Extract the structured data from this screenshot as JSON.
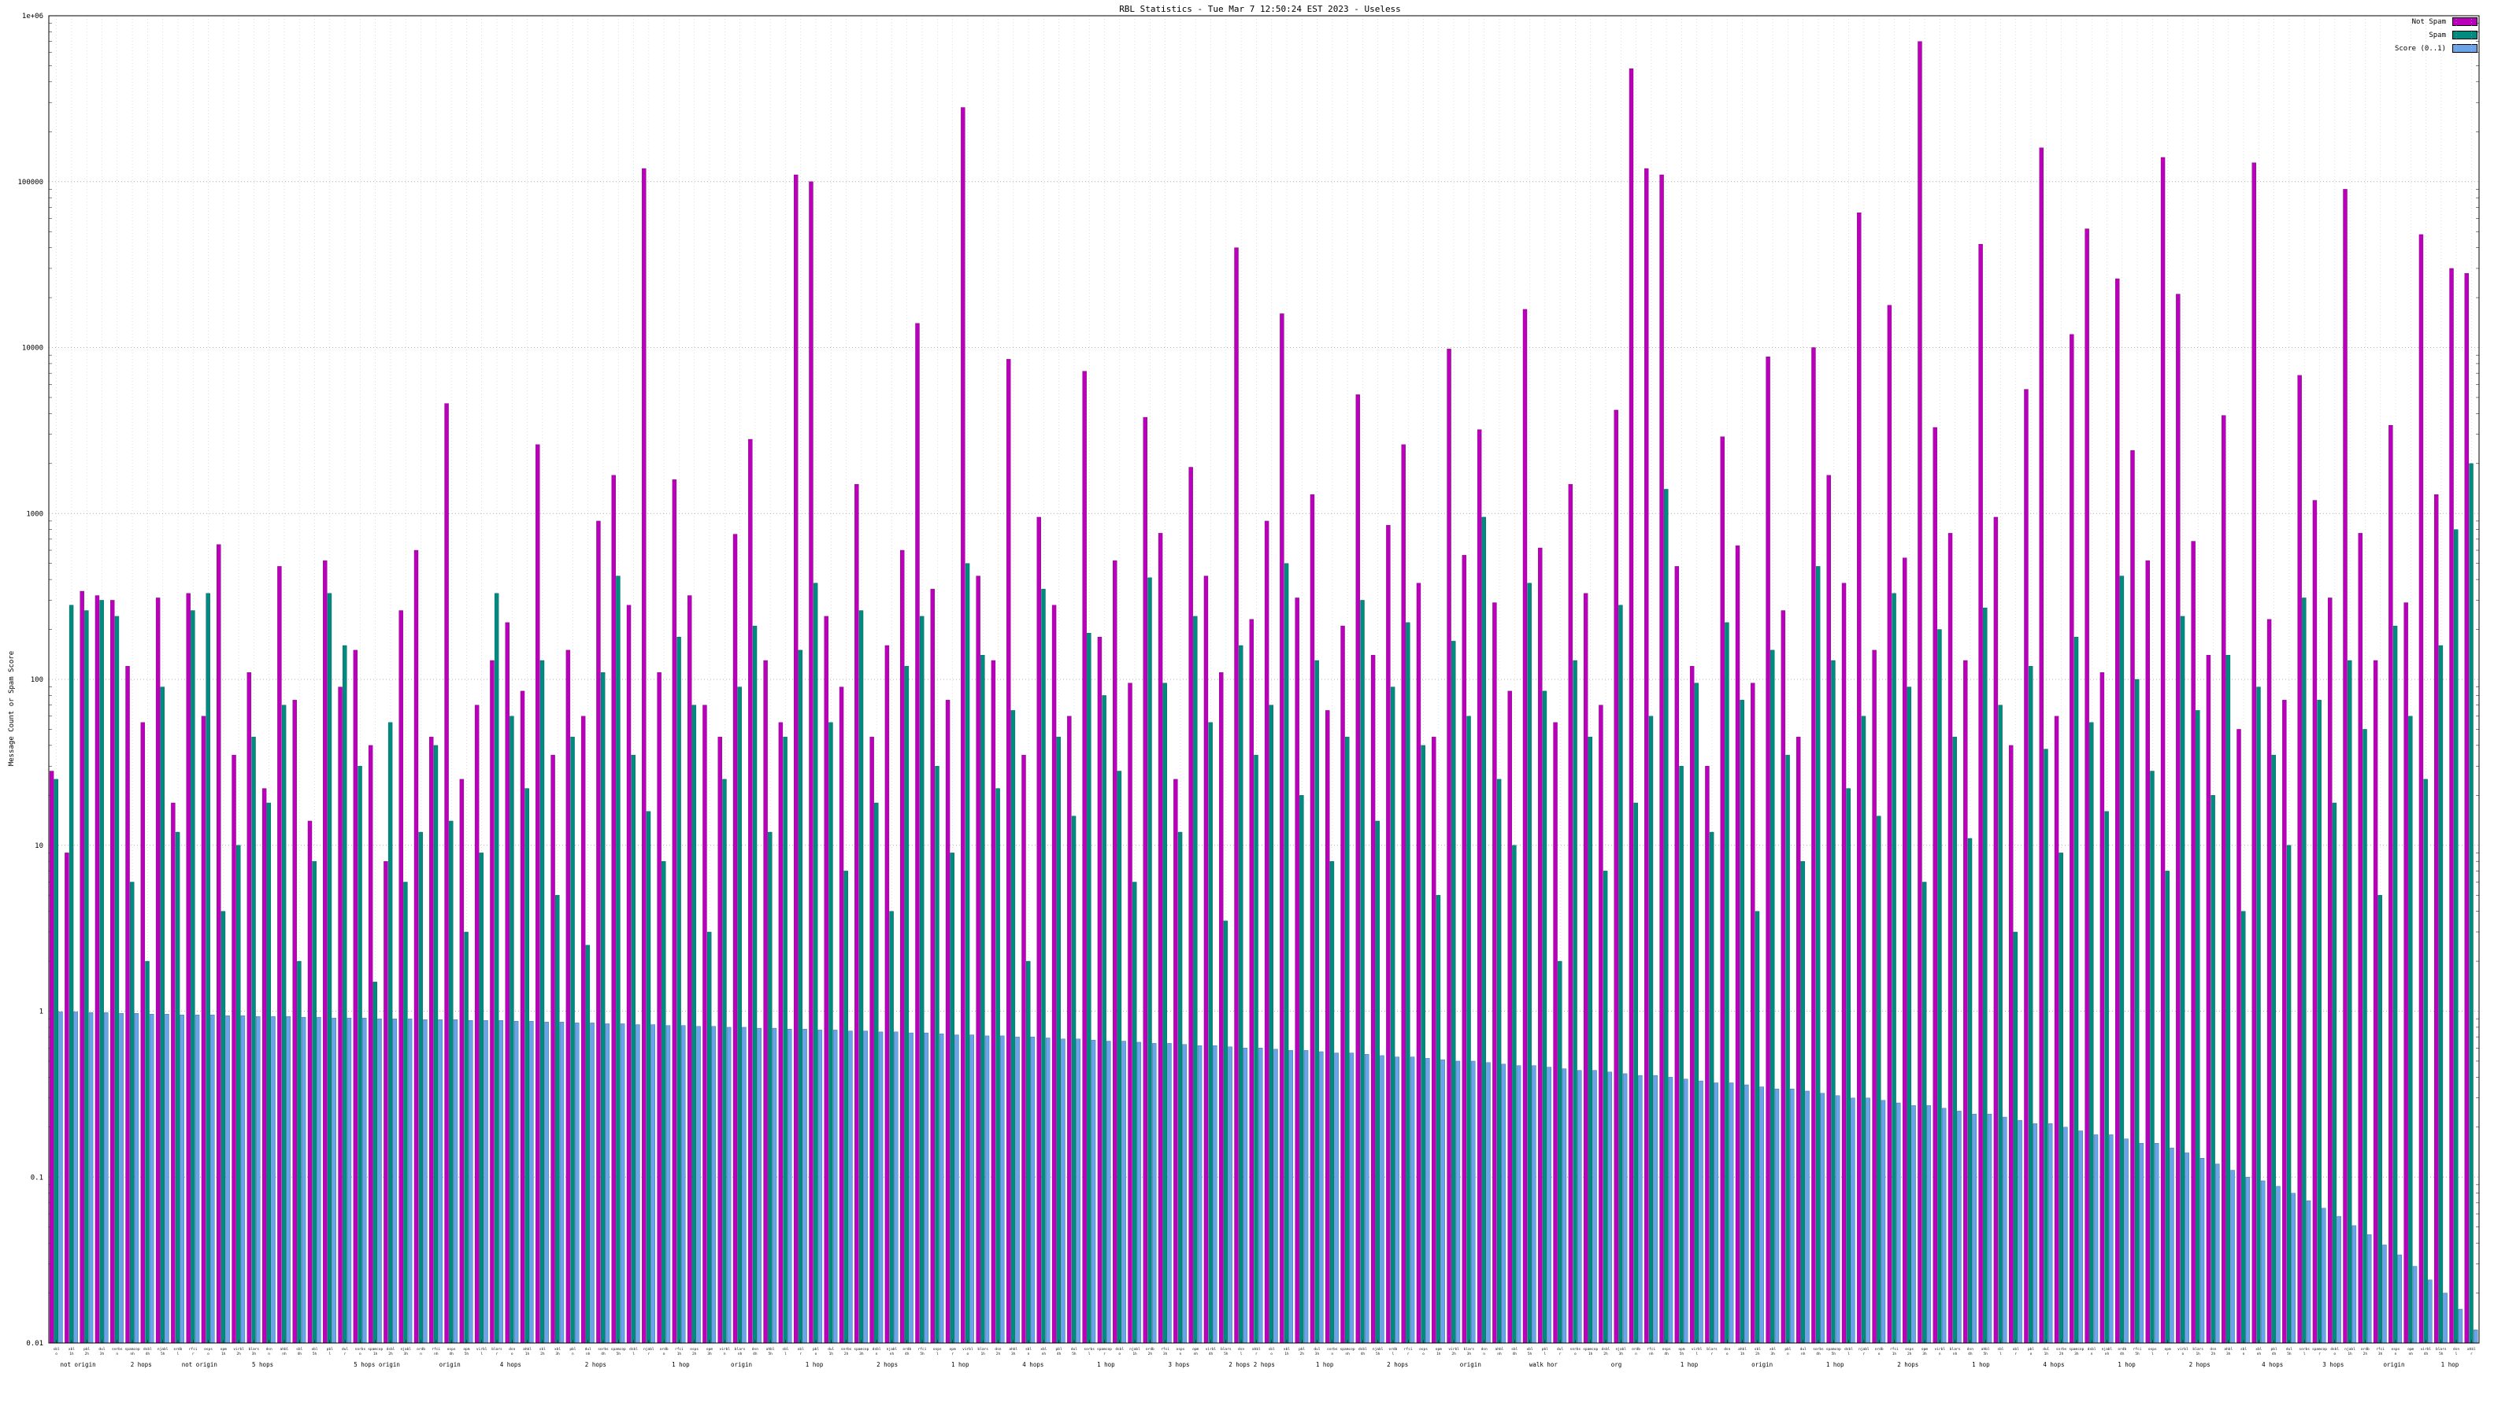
{
  "chart_data": {
    "type": "bar",
    "title": "RBL Statistics - Tue Mar  7 12:50:24 EST 2023 - Useless",
    "ylabel": "Message Count or Spam Score",
    "xlabel": "",
    "y_scale": "log",
    "ylim": [
      0.01,
      1000000
    ],
    "y_ticks": [
      "1e+06",
      "100000",
      "10000",
      "1000",
      "100",
      "10",
      "1",
      "0.1",
      "0.01"
    ],
    "y_tick_values": [
      1000000,
      100000,
      10000,
      1000,
      100,
      10,
      1,
      0.1,
      0.01
    ],
    "grid": true,
    "legend_position": "top-right",
    "series": [
      {
        "name": "Not Spam",
        "color": "#bb00bb",
        "edge": "#770077",
        "values": [
          28,
          9,
          340,
          320,
          300,
          120,
          55,
          310,
          18,
          330,
          60,
          650,
          35,
          110,
          22,
          480,
          75,
          14,
          520,
          90,
          150,
          40,
          8,
          260,
          600,
          45,
          4600,
          25,
          70,
          130,
          220,
          85,
          2600,
          35,
          150,
          60,
          900,
          1700,
          280,
          120000,
          110,
          1600,
          320,
          70,
          45,
          750,
          2800,
          130,
          55,
          110000,
          100000,
          240,
          90,
          1500,
          45,
          160,
          600,
          14000,
          350,
          75,
          280000,
          420,
          130,
          8500,
          35,
          950,
          280,
          60,
          7200,
          180,
          520,
          95,
          3800,
          760,
          25,
          1900,
          420,
          110,
          40000,
          230,
          900,
          16000,
          310,
          1300,
          65,
          210,
          5200,
          140,
          850,
          2600,
          380,
          45,
          9800,
          560,
          3200,
          290,
          85,
          17000,
          620,
          55,
          1500,
          330,
          70,
          4200,
          480000,
          120000,
          110000,
          480,
          120,
          30,
          2900,
          640,
          95,
          8800,
          260,
          45,
          10000,
          1700,
          380,
          65000,
          150,
          18000,
          540,
          700000,
          3300,
          760,
          130,
          42000,
          950,
          40,
          5600,
          160000,
          60,
          12000,
          52000,
          110,
          26000,
          2400,
          520,
          140000,
          21000,
          680,
          140,
          3900,
          50,
          130000,
          230,
          75,
          6800,
          1200,
          310,
          90000,
          760,
          130,
          3400,
          290,
          48000,
          1300,
          30000,
          28000
        ]
      },
      {
        "name": "Spam",
        "color": "#008b80",
        "edge": "#005550",
        "values": [
          25,
          280,
          260,
          300,
          240,
          6,
          2,
          90,
          12,
          260,
          330,
          4,
          10,
          45,
          18,
          70,
          2,
          8,
          330,
          160,
          30,
          1.5,
          55,
          6,
          12,
          40,
          14,
          3,
          9,
          330,
          60,
          22,
          130,
          5,
          45,
          2.5,
          110,
          420,
          35,
          16,
          8,
          180,
          70,
          3,
          25,
          90,
          210,
          12,
          45,
          150,
          380,
          55,
          7,
          260,
          18,
          4,
          120,
          240,
          30,
          9,
          500,
          140,
          22,
          65,
          2,
          350,
          45,
          15,
          190,
          80,
          28,
          6,
          410,
          95,
          12,
          240,
          55,
          3.5,
          160,
          35,
          70,
          500,
          20,
          130,
          8,
          45,
          300,
          14,
          90,
          220,
          40,
          5,
          170,
          60,
          950,
          25,
          10,
          380,
          85,
          2,
          130,
          45,
          7,
          280,
          18,
          60,
          1400,
          30,
          95,
          12,
          220,
          75,
          4,
          150,
          35,
          8,
          480,
          130,
          22,
          60,
          15,
          330,
          90,
          6,
          200,
          45,
          11,
          270,
          70,
          3,
          120,
          38,
          9,
          180,
          55,
          16,
          420,
          100,
          28,
          7,
          240,
          65,
          20,
          140,
          4,
          90,
          35,
          10,
          310,
          75,
          18,
          130,
          50,
          5,
          210,
          60,
          25,
          160,
          800,
          2000
        ]
      },
      {
        "name": "Score (0..1)",
        "color": "#6aa3e8",
        "edge": "#2f5fa0",
        "values": [
          0.99,
          0.99,
          0.98,
          0.98,
          0.97,
          0.97,
          0.96,
          0.96,
          0.95,
          0.95,
          0.95,
          0.94,
          0.94,
          0.93,
          0.93,
          0.93,
          0.92,
          0.92,
          0.91,
          0.91,
          0.91,
          0.9,
          0.9,
          0.9,
          0.89,
          0.89,
          0.89,
          0.88,
          0.88,
          0.88,
          0.87,
          0.87,
          0.86,
          0.86,
          0.85,
          0.85,
          0.84,
          0.84,
          0.83,
          0.83,
          0.82,
          0.82,
          0.81,
          0.81,
          0.8,
          0.8,
          0.79,
          0.79,
          0.78,
          0.78,
          0.77,
          0.77,
          0.76,
          0.76,
          0.75,
          0.75,
          0.74,
          0.74,
          0.73,
          0.72,
          0.72,
          0.71,
          0.71,
          0.7,
          0.7,
          0.69,
          0.68,
          0.68,
          0.67,
          0.66,
          0.66,
          0.65,
          0.64,
          0.64,
          0.63,
          0.62,
          0.62,
          0.61,
          0.6,
          0.6,
          0.59,
          0.58,
          0.58,
          0.57,
          0.56,
          0.56,
          0.55,
          0.54,
          0.53,
          0.53,
          0.52,
          0.51,
          0.5,
          0.5,
          0.49,
          0.48,
          0.47,
          0.47,
          0.46,
          0.45,
          0.44,
          0.44,
          0.43,
          0.42,
          0.41,
          0.41,
          0.4,
          0.39,
          0.38,
          0.37,
          0.37,
          0.36,
          0.35,
          0.34,
          0.34,
          0.33,
          0.32,
          0.31,
          0.3,
          0.3,
          0.29,
          0.28,
          0.27,
          0.27,
          0.26,
          0.25,
          0.24,
          0.24,
          0.23,
          0.22,
          0.21,
          0.21,
          0.2,
          0.19,
          0.18,
          0.18,
          0.17,
          0.16,
          0.16,
          0.15,
          0.14,
          0.13,
          0.12,
          0.11,
          0.1,
          0.095,
          0.088,
          0.08,
          0.072,
          0.065,
          0.058,
          0.051,
          0.045,
          0.039,
          0.034,
          0.029,
          0.024,
          0.02,
          0.016,
          0.012
        ]
      }
    ],
    "categories": [
      "sbl o",
      "xbl 1h",
      "pbl 2h",
      "dul 3h",
      "sorbs n",
      "spamcop nh",
      "dsbl 4h",
      "njabl 5h",
      "ordb l",
      "rfci r",
      "osps o",
      "opm 1h",
      "virbl 2h",
      "blars 3h",
      "dsn n",
      "ahbl nh",
      "sbl 4h",
      "xbl 5h",
      "pbl l",
      "dul r",
      "sorbs o",
      "spamcop 1h",
      "dsbl 2h",
      "njabl 3h",
      "ordb n",
      "rfci nh",
      "osps 4h",
      "opm 5h",
      "virbl l",
      "blars r",
      "dsn o",
      "ahbl 1h",
      "sbl 2h",
      "xbl 3h",
      "pbl n",
      "dul nh",
      "sorbs 4h",
      "spamcop 5h",
      "dsbl l",
      "njabl r",
      "ordb o",
      "rfci 1h",
      "osps 2h",
      "opm 3h",
      "virbl n",
      "blars nh",
      "dsn 4h",
      "ahbl 5h",
      "sbl l",
      "xbl r",
      "pbl o",
      "dul 1h",
      "sorbs 2h",
      "spamcop 3h",
      "dsbl n",
      "njabl nh",
      "ordb 4h",
      "rfci 5h",
      "osps l",
      "opm r",
      "virbl o",
      "blars 1h",
      "dsn 2h",
      "ahbl 3h",
      "sbl n",
      "xbl nh",
      "pbl 4h",
      "dul 5h",
      "sorbs l",
      "spamcop r",
      "dsbl o",
      "njabl 1h",
      "ordb 2h",
      "rfci 3h",
      "osps n",
      "opm nh",
      "virbl 4h",
      "blars 5h",
      "dsn l",
      "ahbl r",
      "sbl o",
      "xbl 1h",
      "pbl 2h",
      "dul 3h",
      "sorbs n",
      "spamcop nh",
      "dsbl 4h",
      "njabl 5h",
      "ordb l",
      "rfci r",
      "osps o",
      "opm 1h",
      "virbl 2h",
      "blars 3h",
      "dsn n",
      "ahbl nh",
      "sbl 4h",
      "xbl 5h",
      "pbl l",
      "dul r",
      "sorbs o",
      "spamcop 1h",
      "dsbl 2h",
      "njabl 3h",
      "ordb n",
      "rfci nh",
      "osps 4h",
      "opm 5h",
      "virbl l",
      "blars r",
      "dsn o",
      "ahbl 1h",
      "sbl 2h",
      "xbl 3h",
      "pbl n",
      "dul nh",
      "sorbs 4h",
      "spamcop 5h",
      "dsbl l",
      "njabl r",
      "ordb o",
      "rfci 1h",
      "osps 2h",
      "opm 3h",
      "virbl n",
      "blars nh",
      "dsn 4h",
      "ahbl 5h",
      "sbl l",
      "xbl r",
      "pbl o",
      "dul 1h",
      "sorbs 2h",
      "spamcop 3h",
      "dsbl n",
      "njabl nh",
      "ordb 4h",
      "rfci 5h",
      "osps l",
      "opm r",
      "virbl o",
      "blars 1h",
      "dsn 2h",
      "ahbl 3h",
      "sbl n",
      "xbl nh",
      "pbl 4h",
      "dul 5h",
      "sorbs l",
      "spamcop r",
      "dsbl o",
      "njabl 1h",
      "ordb 2h",
      "rfci 3h",
      "osps n",
      "opm nh",
      "virbl 4h",
      "blars 5h",
      "dsn l",
      "ahbl r"
    ],
    "x_sublabels": [
      {
        "pos": 0.012,
        "text": "not origin"
      },
      {
        "pos": 0.038,
        "text": "2 hops"
      },
      {
        "pos": 0.062,
        "text": "not origin"
      },
      {
        "pos": 0.088,
        "text": "5 hops"
      },
      {
        "pos": 0.135,
        "text": "5 hops origin"
      },
      {
        "pos": 0.165,
        "text": "origin"
      },
      {
        "pos": 0.19,
        "text": "4 hops"
      },
      {
        "pos": 0.225,
        "text": "2 hops"
      },
      {
        "pos": 0.26,
        "text": "1 hop"
      },
      {
        "pos": 0.285,
        "text": "origin"
      },
      {
        "pos": 0.315,
        "text": "1 hop"
      },
      {
        "pos": 0.345,
        "text": "2 hops"
      },
      {
        "pos": 0.375,
        "text": "1 hop"
      },
      {
        "pos": 0.405,
        "text": "4 hops"
      },
      {
        "pos": 0.435,
        "text": "1 hop"
      },
      {
        "pos": 0.465,
        "text": "3 hops"
      },
      {
        "pos": 0.495,
        "text": "2 hops 2 hops"
      },
      {
        "pos": 0.525,
        "text": "1 hop"
      },
      {
        "pos": 0.555,
        "text": "2 hops"
      },
      {
        "pos": 0.585,
        "text": "origin"
      },
      {
        "pos": 0.615,
        "text": "walk hor"
      },
      {
        "pos": 0.645,
        "text": "org"
      },
      {
        "pos": 0.675,
        "text": "1 hop"
      },
      {
        "pos": 0.705,
        "text": "origin"
      },
      {
        "pos": 0.735,
        "text": "1 hop"
      },
      {
        "pos": 0.765,
        "text": "2 hops"
      },
      {
        "pos": 0.795,
        "text": "1 hop"
      },
      {
        "pos": 0.825,
        "text": "4 hops"
      },
      {
        "pos": 0.855,
        "text": "1 hop"
      },
      {
        "pos": 0.885,
        "text": "2 hops"
      },
      {
        "pos": 0.915,
        "text": "4 hops"
      },
      {
        "pos": 0.94,
        "text": "3 hops"
      },
      {
        "pos": 0.965,
        "text": "origin"
      },
      {
        "pos": 0.988,
        "text": "1 hop"
      }
    ]
  }
}
